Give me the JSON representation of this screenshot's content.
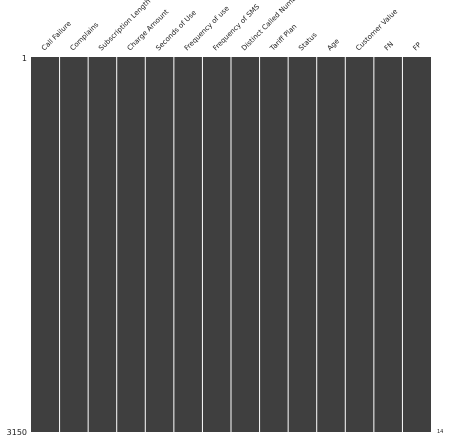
{
  "chart_data": {
    "type": "heatmap",
    "title": "",
    "columns": [
      "Call Failure",
      "Complains",
      "Subscription Length",
      "Charge Amount",
      "Seconds of Use",
      "Frequency of use",
      "Frequency of SMS",
      "Distinct Called Numbers",
      "Tariff Plan",
      "Status",
      "Age",
      "Customer Value",
      "FN",
      "FP"
    ],
    "row_count": 3150,
    "y_tick_labels": [
      "1",
      "3150"
    ],
    "sparkline_label": "14",
    "missing_counts": [
      0,
      0,
      0,
      0,
      0,
      0,
      0,
      0,
      0,
      0,
      0,
      0,
      0,
      0
    ],
    "colors": {
      "filled": "#3f3f3f",
      "missing": "#ffffff",
      "separator": "#ffffff",
      "text": "#222222"
    }
  }
}
